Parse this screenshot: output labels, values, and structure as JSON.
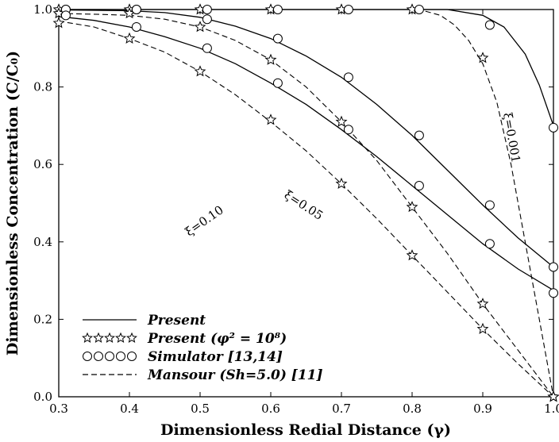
{
  "chart_data": {
    "type": "line",
    "xlabel": "Dimensionless Redial Distance (γ)",
    "ylabel": "Dimensionless Concentration (C/C₀)",
    "xlim": [
      0.3,
      1.0
    ],
    "ylim": [
      0.0,
      1.0
    ],
    "xticks": [
      "0.3",
      "0.4",
      "0.5",
      "0.6",
      "0.7",
      "0.8",
      "0.9",
      "1.0"
    ],
    "yticks": [
      "0.0",
      "0.2",
      "0.4",
      "0.6",
      "0.8",
      "1.0"
    ],
    "grid": false,
    "legend_position": "bottom-left",
    "legend": [
      {
        "name": "Present",
        "style": "solid line"
      },
      {
        "name": "Present (φ² = 10⁸)",
        "style": "star markers"
      },
      {
        "name": "Simulator [13,14]",
        "style": "circle markers"
      },
      {
        "name": "Mansour (Sh=5.0) [11]",
        "style": "dashed line"
      }
    ],
    "annotations": [
      "ξ=0.10",
      "ξ=0.05",
      "ξ=0.001"
    ],
    "series": [
      {
        "group": "ξ=0.001",
        "kind": "present",
        "x": [
          0.3,
          0.5,
          0.7,
          0.85,
          0.9,
          0.93,
          0.96,
          0.98,
          1.0
        ],
        "y": [
          1.0,
          1.0,
          1.0,
          1.0,
          0.985,
          0.955,
          0.885,
          0.805,
          0.7
        ]
      },
      {
        "group": "ξ=0.05",
        "kind": "present",
        "x": [
          0.3,
          0.4,
          0.45,
          0.5,
          0.55,
          0.6,
          0.65,
          0.7,
          0.75,
          0.8,
          0.85,
          0.9,
          0.95,
          1.0
        ],
        "y": [
          0.999,
          0.997,
          0.992,
          0.98,
          0.957,
          0.925,
          0.88,
          0.825,
          0.755,
          0.675,
          0.585,
          0.495,
          0.41,
          0.335
        ]
      },
      {
        "group": "ξ=0.10",
        "kind": "present",
        "x": [
          0.3,
          0.35,
          0.4,
          0.45,
          0.5,
          0.55,
          0.6,
          0.65,
          0.7,
          0.75,
          0.8,
          0.85,
          0.9,
          0.95,
          1.0
        ],
        "y": [
          0.982,
          0.972,
          0.955,
          0.93,
          0.9,
          0.86,
          0.81,
          0.755,
          0.69,
          0.62,
          0.545,
          0.47,
          0.395,
          0.33,
          0.275
        ]
      },
      {
        "group": "ξ=0.001",
        "kind": "mansour",
        "x": [
          0.3,
          0.8,
          0.82,
          0.84,
          0.86,
          0.88,
          0.9,
          0.92,
          0.94,
          0.96,
          0.98,
          1.0
        ],
        "y": [
          1.0,
          1.0,
          0.995,
          0.985,
          0.96,
          0.92,
          0.86,
          0.76,
          0.6,
          0.4,
          0.2,
          0.0
        ]
      },
      {
        "group": "ξ=0.05",
        "kind": "mansour",
        "x": [
          0.3,
          0.35,
          0.4,
          0.45,
          0.5,
          0.55,
          0.6,
          0.65,
          0.7,
          0.75,
          0.8,
          0.85,
          0.9,
          0.95,
          1.0
        ],
        "y": [
          0.99,
          0.988,
          0.985,
          0.975,
          0.955,
          0.92,
          0.87,
          0.8,
          0.71,
          0.61,
          0.49,
          0.37,
          0.24,
          0.12,
          0.0
        ]
      },
      {
        "group": "ξ=0.10",
        "kind": "mansour",
        "x": [
          0.3,
          0.35,
          0.4,
          0.45,
          0.5,
          0.55,
          0.6,
          0.65,
          0.7,
          0.75,
          0.8,
          0.85,
          0.9,
          0.95,
          1.0
        ],
        "y": [
          0.97,
          0.955,
          0.925,
          0.89,
          0.84,
          0.78,
          0.71,
          0.635,
          0.55,
          0.46,
          0.365,
          0.27,
          0.175,
          0.085,
          0.0
        ]
      },
      {
        "group": "ξ=0.001",
        "kind": "stars",
        "x": [
          0.3,
          0.4,
          0.5,
          0.6,
          0.7,
          0.8,
          0.9,
          1.0
        ],
        "y": [
          1.0,
          1.0,
          1.0,
          1.0,
          1.0,
          1.0,
          0.875,
          0.0
        ]
      },
      {
        "group": "ξ=0.05",
        "kind": "stars",
        "x": [
          0.3,
          0.4,
          0.5,
          0.6,
          0.7,
          0.8,
          0.9,
          1.0
        ],
        "y": [
          0.99,
          0.99,
          0.955,
          0.87,
          0.71,
          0.49,
          0.24,
          0.0
        ]
      },
      {
        "group": "ξ=0.10",
        "kind": "stars",
        "x": [
          0.3,
          0.4,
          0.5,
          0.6,
          0.7,
          0.8,
          0.9,
          1.0
        ],
        "y": [
          0.965,
          0.925,
          0.84,
          0.715,
          0.55,
          0.365,
          0.175,
          0.0
        ]
      },
      {
        "group": "ξ=0.001",
        "kind": "circles",
        "x": [
          0.31,
          0.41,
          0.51,
          0.61,
          0.71,
          0.81,
          0.91,
          1.0
        ],
        "y": [
          1.0,
          1.0,
          1.0,
          1.0,
          1.0,
          1.0,
          0.96,
          0.695
        ]
      },
      {
        "group": "ξ=0.05",
        "kind": "circles",
        "x": [
          0.31,
          0.41,
          0.51,
          0.61,
          0.71,
          0.81,
          0.91,
          1.0
        ],
        "y": [
          1.0,
          1.0,
          0.975,
          0.925,
          0.825,
          0.675,
          0.495,
          0.335
        ]
      },
      {
        "group": "ξ=0.10",
        "kind": "circles",
        "x": [
          0.31,
          0.41,
          0.51,
          0.61,
          0.71,
          0.81,
          0.91,
          1.0
        ],
        "y": [
          0.985,
          0.955,
          0.9,
          0.81,
          0.69,
          0.545,
          0.395,
          0.268
        ]
      }
    ]
  }
}
